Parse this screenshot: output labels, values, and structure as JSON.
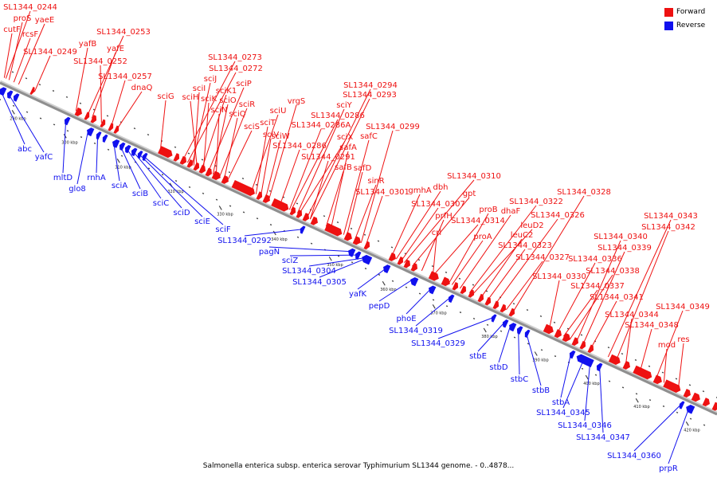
{
  "colors": {
    "forward": "#ee1111",
    "reverse": "#1010ee",
    "backbone": "#8f8f8f"
  },
  "legend": {
    "forward_label": "Forward",
    "reverse_label": "Reverse"
  },
  "caption": "Salmonella enterica subsp. enterica serovar Typhimurium SL1344 genome. - 0..4878...",
  "ticks": [
    "290 kbp",
    "300 kbp",
    "310 kbp",
    "320 kbp",
    "330 kbp",
    "340 kbp",
    "350 kbp",
    "360 kbp",
    "370 kbp",
    "380 kbp",
    "390 kbp",
    "400 kbp",
    "410 kbp",
    "420 kbp"
  ],
  "forward_labels": [
    "SL1344_0244",
    "proS",
    "cutF",
    "yaeE",
    "rcsF",
    "SL1344_0249",
    "yafB",
    "SL1344_0253",
    "yafE",
    "SL1344_0252",
    "SL1344_0257",
    "dnaQ",
    "sciG",
    "SL1344_0273",
    "SL1344_0272",
    "sciJ",
    "sciI",
    "sciH",
    "sciK1",
    "sciK",
    "sciP",
    "sciO",
    "sciN",
    "sciR",
    "sciQ",
    "sciS",
    "sciU",
    "sciT",
    "sciV",
    "sciW",
    "vrgS",
    "SL1344_0294",
    "SL1344_0293",
    "sciY",
    "SL1344_0286",
    "SL1344_0286A",
    "sciX",
    "SL1344_0286",
    "SL1344_0291",
    "safA",
    "safC",
    "SL1344_0299",
    "safB",
    "safD",
    "sinR",
    "SL1344_0301",
    "gmhA",
    "dbh",
    "SL1344_0310",
    "SL1344_0307",
    "gpt",
    "prfH",
    "SL1344_0314",
    "crl",
    "proB",
    "dhaF",
    "SL1344_0322",
    "proA",
    "leuD2",
    "leuC2",
    "SL1344_0323",
    "SL1344_0326",
    "SL1344_0327",
    "SL1344_0328",
    "SL1344_0330",
    "SL1344_0336",
    "SL1344_0337",
    "SL1344_0338",
    "SL1344_0340",
    "SL1344_0339",
    "SL1344_0341",
    "SL1344_0343",
    "SL1344_0342",
    "SL1344_0344",
    "SL1344_0348",
    "SL1344_0349",
    "mod",
    "res"
  ],
  "reverse_labels": [
    "abc",
    "yafC",
    "mltD",
    "glo8",
    "rnhA",
    "sciA",
    "sciB",
    "sciC",
    "sciD",
    "sciE",
    "sciF",
    "SL1344_0292",
    "pagN",
    "sciZ",
    "SL1344_0304",
    "SL1344_0305",
    "yafK",
    "pepD",
    "phoE",
    "SL1344_0319",
    "SL1344_0329",
    "stbE",
    "stbD",
    "stbC",
    "stbB",
    "stbA",
    "SL1344_0345",
    "SL1344_0346",
    "SL1344_0347",
    "SL1344_0360",
    "prpR"
  ]
}
